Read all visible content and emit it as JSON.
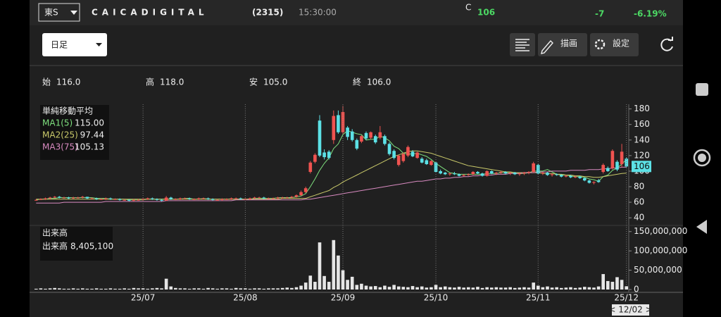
{
  "header": {
    "exchange": "東S",
    "name": "CAICADIGITAL",
    "code": "(2315)",
    "time": "15:30:00",
    "price_flag": "C",
    "price": "106",
    "change": "-7",
    "change_pct": "-6.19%"
  },
  "toolbar": {
    "period": "日足",
    "draw": "描画",
    "settings": "設定"
  },
  "ohlc": [
    {
      "label": "始",
      "value": "116.0"
    },
    {
      "label": "高",
      "value": "118.0"
    },
    {
      "label": "安",
      "value": "105.0"
    },
    {
      "label": "終",
      "value": "106.0"
    }
  ],
  "footer": {
    "cursor_date": "< 12/02 >"
  },
  "chart_data": [
    {
      "type": "candlestick",
      "legend_title": "単純移動平均",
      "last_label": "106",
      "up_color": "#ef5350",
      "down_color": "#5ce1e6",
      "ylim": [
        32,
        186
      ],
      "yticks": [
        40,
        60,
        80,
        100,
        120,
        140,
        160,
        180
      ],
      "open": [
        63,
        63,
        64,
        65,
        66,
        67,
        66,
        66,
        65,
        66,
        66,
        67,
        65,
        65,
        64,
        64,
        65,
        64,
        64,
        63,
        63,
        62,
        63,
        63,
        64,
        65,
        64,
        63,
        62,
        66,
        64,
        64,
        65,
        65,
        64,
        64,
        65,
        65,
        64,
        63,
        63,
        64,
        64,
        65,
        65,
        64,
        64,
        65,
        66,
        66,
        65,
        65,
        65,
        66,
        66,
        66,
        67,
        69,
        73,
        99,
        112,
        165,
        124,
        125,
        140,
        172,
        150,
        156,
        151,
        140,
        138,
        149,
        143,
        145,
        143,
        145,
        135,
        126,
        108,
        113,
        120,
        125,
        117,
        116,
        114,
        108,
        111,
        100,
        98,
        96,
        97,
        96,
        94,
        95,
        96,
        99,
        97,
        94,
        100,
        97,
        98,
        99,
        97,
        98,
        96,
        97,
        98,
        99,
        108,
        97,
        98,
        95,
        96,
        95,
        93,
        94,
        92,
        93,
        91,
        88,
        85,
        88,
        99,
        104,
        104,
        112,
        109,
        116
      ],
      "high": [
        64,
        65,
        66,
        67,
        68,
        68,
        67,
        67,
        67,
        67,
        68,
        67,
        66,
        66,
        65,
        66,
        66,
        65,
        65,
        64,
        64,
        64,
        64,
        65,
        66,
        66,
        65,
        64,
        68,
        67,
        65,
        66,
        66,
        66,
        65,
        66,
        66,
        66,
        65,
        64,
        65,
        65,
        66,
        66,
        66,
        65,
        66,
        67,
        67,
        67,
        66,
        66,
        67,
        67,
        67,
        68,
        70,
        75,
        80,
        113,
        123,
        172,
        128,
        127,
        178,
        178,
        184,
        158,
        154,
        142,
        146,
        151,
        151,
        147,
        158,
        147,
        137,
        128,
        121,
        124,
        133,
        127,
        125,
        118,
        116,
        114,
        112,
        102,
        99,
        98,
        99,
        97,
        96,
        97,
        100,
        100,
        98,
        101,
        101,
        99,
        100,
        100,
        99,
        99,
        98,
        99,
        100,
        112,
        109,
        99,
        99,
        97,
        97,
        96,
        95,
        95,
        94,
        94,
        92,
        89,
        87,
        90,
        110,
        106,
        128,
        114,
        135,
        118
      ],
      "low": [
        62,
        63,
        63,
        64,
        65,
        65,
        65,
        64,
        64,
        65,
        65,
        64,
        64,
        63,
        63,
        63,
        63,
        63,
        62,
        62,
        61,
        61,
        62,
        62,
        63,
        63,
        62,
        61,
        62,
        63,
        63,
        63,
        64,
        63,
        63,
        63,
        64,
        63,
        62,
        62,
        62,
        63,
        63,
        64,
        63,
        63,
        63,
        64,
        65,
        64,
        64,
        64,
        64,
        65,
        65,
        65,
        66,
        68,
        72,
        97,
        110,
        118,
        115,
        115,
        135,
        148,
        148,
        140,
        138,
        127,
        136,
        140,
        141,
        135,
        141,
        133,
        120,
        115,
        106,
        111,
        118,
        118,
        116,
        110,
        108,
        107,
        98,
        96,
        95,
        94,
        95,
        93,
        93,
        94,
        95,
        96,
        93,
        93,
        96,
        95,
        96,
        96,
        95,
        95,
        94,
        95,
        96,
        98,
        96,
        95,
        94,
        93,
        94,
        92,
        92,
        91,
        91,
        90,
        87,
        84,
        83,
        85,
        97,
        99,
        102,
        100,
        105,
        105
      ],
      "close": [
        63,
        64,
        65,
        66,
        67,
        66,
        66,
        65,
        66,
        66,
        67,
        65,
        65,
        64,
        64,
        65,
        64,
        64,
        63,
        63,
        62,
        63,
        63,
        64,
        65,
        64,
        63,
        62,
        66,
        64,
        64,
        65,
        65,
        64,
        64,
        65,
        65,
        64,
        63,
        63,
        64,
        64,
        65,
        65,
        64,
        64,
        65,
        66,
        66,
        65,
        65,
        65,
        66,
        66,
        66,
        67,
        69,
        73,
        78,
        111,
        121,
        120,
        118,
        117,
        171,
        150,
        176,
        144,
        140,
        129,
        145,
        142,
        150,
        137,
        150,
        135,
        122,
        117,
        120,
        122,
        131,
        119,
        124,
        111,
        109,
        113,
        99,
        97,
        96,
        97,
        96,
        94,
        95,
        96,
        99,
        97,
        94,
        100,
        97,
        98,
        99,
        97,
        98,
        96,
        97,
        98,
        99,
        110,
        97,
        98,
        95,
        96,
        95,
        93,
        94,
        92,
        93,
        91,
        88,
        85,
        86,
        86,
        108,
        100,
        126,
        102,
        125,
        106
      ],
      "series": [
        {
          "name": "MA1(5)",
          "last_label": "115.00",
          "color": "#7ee07e",
          "values": [
            63,
            64,
            64,
            65,
            65,
            66,
            66,
            66,
            66,
            66,
            66,
            66,
            66,
            65,
            65,
            65,
            64,
            64,
            64,
            64,
            63,
            63,
            63,
            63,
            64,
            64,
            64,
            64,
            64,
            64,
            64,
            64,
            65,
            65,
            64,
            64,
            65,
            64,
            64,
            64,
            64,
            64,
            64,
            64,
            64,
            64,
            64,
            65,
            65,
            65,
            65,
            65,
            66,
            66,
            66,
            66,
            67,
            68,
            71,
            80,
            90,
            101,
            110,
            117,
            129,
            135,
            147,
            152,
            150,
            148,
            147,
            140,
            141,
            141,
            145,
            143,
            139,
            132,
            129,
            123,
            122,
            122,
            123,
            121,
            119,
            115,
            110,
            106,
            102,
            98,
            97,
            96,
            96,
            96,
            96,
            96,
            96,
            97,
            97,
            97,
            98,
            98,
            98,
            98,
            97,
            97,
            98,
            100,
            100,
            100,
            102,
            99,
            96,
            95,
            95,
            94,
            93,
            93,
            92,
            90,
            89,
            87,
            93,
            95,
            101,
            104,
            109,
            115
          ]
        },
        {
          "name": "MA2(25)",
          "last_label": "97.44",
          "color": "#c9c96a",
          "values": [
            64,
            64,
            64,
            64,
            64,
            64,
            64,
            64,
            64,
            64,
            64,
            64,
            64,
            64,
            64,
            64,
            64,
            64,
            64,
            64,
            64,
            64,
            64,
            64,
            64,
            64,
            64,
            64,
            64,
            64,
            64,
            64,
            64,
            64,
            64,
            64,
            64,
            64,
            64,
            64,
            64,
            64,
            64,
            64,
            64,
            64,
            64,
            64,
            64,
            64,
            64,
            64,
            64,
            65,
            65,
            65,
            65,
            65,
            65,
            67,
            69,
            71,
            73,
            75,
            79,
            82,
            86,
            89,
            92,
            95,
            98,
            101,
            104,
            107,
            110,
            113,
            116,
            119,
            121,
            123,
            125,
            126,
            126,
            125,
            124,
            123,
            121,
            119,
            117,
            115,
            113,
            111,
            109,
            107,
            106,
            105,
            104,
            103,
            102,
            101,
            100,
            99,
            99,
            98,
            98,
            98,
            98,
            98,
            98,
            97,
            97,
            97,
            96,
            96,
            95,
            95,
            94,
            94,
            93,
            93,
            92,
            92,
            93,
            94,
            95,
            96,
            97,
            97.44
          ]
        },
        {
          "name": "MA3(75)",
          "last_label": "105.13",
          "color": "#d88ac0",
          "values": [
            59,
            59,
            59,
            59,
            59,
            59,
            60,
            60,
            60,
            60,
            60,
            60,
            60,
            60,
            60,
            61,
            61,
            61,
            61,
            61,
            61,
            61,
            61,
            61,
            61,
            61,
            61,
            61,
            62,
            62,
            62,
            62,
            62,
            62,
            62,
            62,
            62,
            62,
            62,
            62,
            62,
            62,
            62,
            63,
            63,
            63,
            63,
            63,
            63,
            63,
            63,
            63,
            63,
            63,
            63,
            63,
            63,
            63,
            64,
            64,
            65,
            66,
            67,
            68,
            69,
            70,
            71,
            72,
            73,
            74,
            75,
            76,
            77,
            78,
            79,
            80,
            81,
            82,
            83,
            84,
            85,
            86,
            87,
            87,
            88,
            89,
            90,
            90,
            91,
            91,
            92,
            92,
            93,
            93,
            94,
            94,
            95,
            95,
            95,
            96,
            96,
            96,
            97,
            97,
            97,
            98,
            98,
            98,
            99,
            99,
            99,
            100,
            100,
            100,
            100,
            101,
            101,
            101,
            101,
            102,
            102,
            102,
            103,
            103,
            104,
            104,
            105,
            105.13
          ]
        }
      ]
    },
    {
      "type": "bar",
      "title": "出来高",
      "legend_label": "出来高",
      "last_label": "8,405,100",
      "color": "#e6e6e6",
      "grid": true,
      "categories": [
        null,
        null,
        null,
        null,
        null,
        null,
        null,
        null,
        null,
        null,
        null,
        null,
        null,
        null,
        null,
        null,
        null,
        null,
        null,
        null,
        null,
        null,
        null,
        "25/07",
        null,
        null,
        null,
        null,
        null,
        null,
        null,
        null,
        null,
        null,
        null,
        null,
        null,
        null,
        null,
        null,
        null,
        null,
        null,
        null,
        null,
        "25/08",
        null,
        null,
        null,
        null,
        null,
        null,
        null,
        null,
        null,
        null,
        null,
        null,
        null,
        null,
        null,
        null,
        null,
        null,
        null,
        null,
        "25/09",
        null,
        null,
        null,
        null,
        null,
        null,
        null,
        null,
        null,
        null,
        null,
        null,
        null,
        null,
        null,
        null,
        null,
        null,
        null,
        "25/10",
        null,
        null,
        null,
        null,
        null,
        null,
        null,
        null,
        null,
        null,
        null,
        null,
        null,
        null,
        null,
        null,
        null,
        null,
        null,
        null,
        null,
        "25/11",
        null,
        null,
        null,
        null,
        null,
        null,
        null,
        null,
        null,
        null,
        null,
        null,
        null,
        null,
        null,
        null,
        null,
        null,
        "25/12"
      ],
      "values": [
        2000000,
        3000000,
        2000000,
        3000000,
        4000000,
        3000000,
        2000000,
        2000000,
        3000000,
        2000000,
        3000000,
        2000000,
        2000000,
        3000000,
        2000000,
        2000000,
        3000000,
        2000000,
        2000000,
        3000000,
        2000000,
        4000000,
        3000000,
        3000000,
        2000000,
        3000000,
        4000000,
        3000000,
        28000000,
        8000000,
        4000000,
        3000000,
        3000000,
        2000000,
        3000000,
        3000000,
        2000000,
        4000000,
        3000000,
        2000000,
        3000000,
        3000000,
        2000000,
        4000000,
        3000000,
        3000000,
        2000000,
        3000000,
        3000000,
        2000000,
        3000000,
        3000000,
        3000000,
        4000000,
        5000000,
        4000000,
        6000000,
        10000000,
        18000000,
        36000000,
        20000000,
        122000000,
        35000000,
        20000000,
        128000000,
        88000000,
        50000000,
        25000000,
        33000000,
        12000000,
        15000000,
        10000000,
        8000000,
        9000000,
        6000000,
        10000000,
        7000000,
        12000000,
        8000000,
        7000000,
        6000000,
        9000000,
        6000000,
        8000000,
        5000000,
        6000000,
        12000000,
        6000000,
        8000000,
        6000000,
        5000000,
        7000000,
        5000000,
        6000000,
        5000000,
        7000000,
        4000000,
        6000000,
        5000000,
        6000000,
        5000000,
        5000000,
        6000000,
        4000000,
        5000000,
        6000000,
        5000000,
        18000000,
        10000000,
        6000000,
        8000000,
        5000000,
        6000000,
        4000000,
        5000000,
        6000000,
        4000000,
        5000000,
        7000000,
        6000000,
        5000000,
        8000000,
        40000000,
        22000000,
        20000000,
        32000000,
        25000000,
        8405100
      ],
      "ylim": [
        0,
        155000000
      ],
      "yticks": [
        0,
        {
          "value": 50000000,
          "label": "50,000,000"
        },
        {
          "value": 100000000,
          "label": "100,000,000"
        },
        {
          "value": 150000000,
          "label": "150,000,000"
        }
      ]
    }
  ]
}
